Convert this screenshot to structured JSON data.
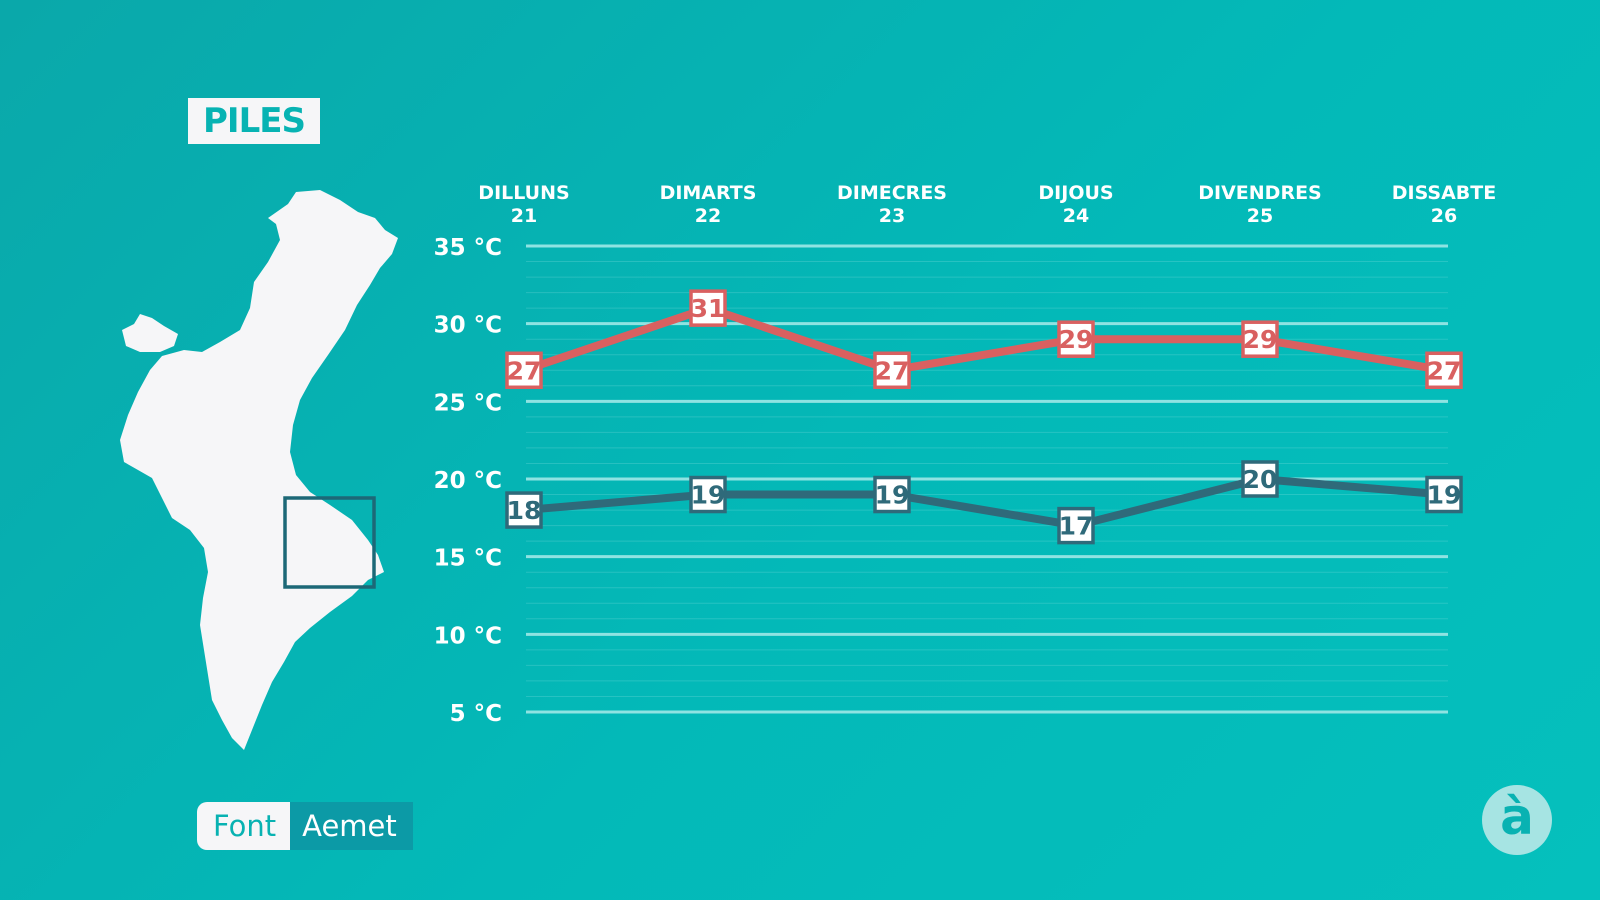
{
  "location": "PILES",
  "source": {
    "label": "Font",
    "value": "Aemet"
  },
  "logo": {
    "glyph": "à"
  },
  "colors": {
    "max": "#d96060",
    "min": "#2f6a7a",
    "grid": "#8fe3e2",
    "text": "#ffffff",
    "map": "#f6f6f8",
    "highlight": "#1d6877"
  },
  "chart_data": {
    "type": "line",
    "categories": [
      {
        "day": "DILLUNS",
        "date": "21"
      },
      {
        "day": "DIMARTS",
        "date": "22"
      },
      {
        "day": "DIMECRES",
        "date": "23"
      },
      {
        "day": "DIJOUS",
        "date": "24"
      },
      {
        "day": "DIVENDRES",
        "date": "25"
      },
      {
        "day": "DISSABTE",
        "date": "26"
      }
    ],
    "series": [
      {
        "key": "max",
        "values": [
          27,
          31,
          27,
          29,
          29,
          27
        ]
      },
      {
        "key": "min",
        "values": [
          18,
          19,
          19,
          17,
          20,
          19
        ]
      }
    ],
    "yticks": [
      35,
      30,
      25,
      20,
      15,
      10,
      5
    ],
    "yunit": "°C",
    "ylim": [
      5,
      35
    ],
    "grid": true
  }
}
